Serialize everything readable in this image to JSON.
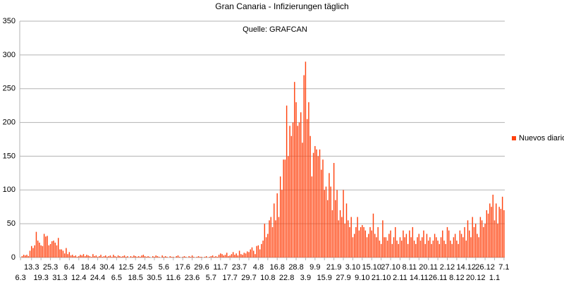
{
  "chart_data": {
    "type": "bar",
    "title": "Gran Canaria - Infizierungen täglich",
    "subtitle": "Quelle: GRAFCAN",
    "legend": "right",
    "grid": true,
    "ylim": [
      0,
      350
    ],
    "yticks": [
      0,
      50,
      100,
      150,
      200,
      250,
      300,
      350
    ],
    "categories": [
      "6.3",
      null,
      null,
      null,
      null,
      null,
      null,
      "13.3",
      null,
      null,
      null,
      null,
      null,
      "19.3",
      null,
      null,
      null,
      null,
      null,
      "25.3",
      null,
      null,
      null,
      null,
      null,
      "31.3",
      null,
      null,
      null,
      null,
      null,
      "6.4",
      null,
      null,
      null,
      null,
      null,
      "12.4",
      null,
      null,
      null,
      null,
      null,
      "18.4",
      null,
      null,
      null,
      null,
      null,
      "24.4",
      null,
      null,
      null,
      null,
      null,
      "30.4",
      null,
      null,
      null,
      null,
      null,
      "6.5",
      null,
      null,
      null,
      null,
      null,
      "12.5",
      null,
      null,
      null,
      null,
      null,
      "18.5",
      null,
      null,
      null,
      null,
      null,
      "24.5",
      null,
      null,
      null,
      null,
      null,
      "30.5",
      null,
      null,
      null,
      null,
      null,
      "5.6",
      null,
      null,
      null,
      null,
      null,
      "11.6",
      null,
      null,
      null,
      null,
      null,
      "17.6",
      null,
      null,
      null,
      null,
      null,
      "23.6",
      null,
      null,
      null,
      null,
      null,
      "29.6",
      null,
      null,
      null,
      null,
      null,
      "5.7",
      null,
      null,
      null,
      null,
      null,
      "11.7",
      null,
      null,
      null,
      null,
      null,
      "17.7",
      null,
      null,
      null,
      null,
      null,
      "23.7",
      null,
      null,
      null,
      null,
      null,
      "29.7",
      null,
      null,
      null,
      null,
      null,
      "4.8",
      null,
      null,
      null,
      null,
      null,
      "10.8",
      null,
      null,
      null,
      null,
      null,
      "16.8",
      null,
      null,
      null,
      null,
      null,
      "22.8",
      null,
      null,
      null,
      null,
      null,
      "28.8",
      null,
      null,
      null,
      null,
      null,
      "3.9",
      null,
      null,
      null,
      null,
      null,
      "9.9",
      null,
      null,
      null,
      null,
      null,
      "15.9",
      null,
      null,
      null,
      null,
      null,
      "21.9",
      null,
      null,
      null,
      null,
      null,
      "27.9",
      null,
      null,
      null,
      null,
      null,
      "3.10",
      null,
      null,
      null,
      null,
      null,
      "9.10",
      null,
      null,
      null,
      null,
      null,
      "15.10",
      null,
      null,
      null,
      null,
      null,
      "21.10",
      null,
      null,
      null,
      null,
      null,
      "27.10",
      null,
      null,
      null,
      null,
      null,
      "2.11",
      null,
      null,
      null,
      null,
      null,
      "8.11",
      null,
      null,
      null,
      null,
      null,
      "14.11",
      null,
      null,
      null,
      null,
      null,
      "20.11",
      null,
      null,
      null,
      null,
      null,
      "26.11",
      null,
      null,
      null,
      null,
      null,
      "2.12",
      null,
      null,
      null,
      null,
      null,
      "8.12",
      null,
      null,
      null,
      null,
      null,
      "14.12",
      null,
      null,
      null,
      null,
      null,
      "20.12",
      null,
      null,
      null,
      null,
      null,
      "26.12",
      null,
      null,
      null,
      null,
      null,
      "1.1",
      null,
      null,
      null,
      null,
      null,
      "7.1"
    ],
    "series": [
      {
        "name": "Nuevos diario",
        "color": "#ff420e",
        "values": [
          0,
          2,
          4,
          3,
          4,
          2,
          10,
          17,
          14,
          18,
          38,
          25,
          22,
          18,
          17,
          35,
          31,
          32,
          18,
          20,
          24,
          25,
          22,
          18,
          29,
          12,
          12,
          10,
          6,
          14,
          5,
          8,
          3,
          4,
          2,
          3,
          1,
          2,
          4,
          3,
          5,
          2,
          4,
          3,
          2,
          1,
          5,
          2,
          3,
          1,
          2,
          4,
          1,
          2,
          3,
          1,
          2,
          3,
          1,
          4,
          2,
          1,
          3,
          2,
          1,
          2,
          3,
          1,
          2,
          0,
          2,
          1,
          3,
          2,
          1,
          2,
          1,
          3,
          4,
          2,
          1,
          2,
          1,
          0,
          2,
          1,
          3,
          2,
          1,
          0,
          3,
          1,
          2,
          1,
          0,
          2,
          1,
          1,
          0,
          2,
          3,
          1,
          0,
          1,
          2,
          1,
          0,
          2,
          1,
          3,
          1,
          0,
          1,
          2,
          1,
          1,
          0,
          1,
          2,
          0,
          1,
          2,
          3,
          1,
          2,
          1,
          4,
          6,
          5,
          3,
          4,
          7,
          2,
          3,
          5,
          8,
          4,
          6,
          3,
          10,
          5,
          4,
          7,
          6,
          9,
          8,
          12,
          15,
          10,
          5,
          17,
          18,
          12,
          20,
          25,
          50,
          30,
          35,
          55,
          60,
          45,
          80,
          55,
          95,
          60,
          120,
          100,
          145,
          145,
          225,
          150,
          195,
          180,
          200,
          260,
          230,
          195,
          200,
          215,
          170,
          270,
          290,
          205,
          230,
          180,
          120,
          155,
          165,
          160,
          150,
          160,
          130,
          145,
          100,
          105,
          85,
          125,
          105,
          70,
          140,
          85,
          100,
          55,
          70,
          60,
          100,
          50,
          80,
          55,
          45,
          60,
          30,
          35,
          45,
          60,
          40,
          45,
          48,
          45,
          40,
          30,
          35,
          45,
          40,
          65,
          35,
          30,
          45,
          25,
          20,
          55,
          30,
          30,
          25,
          35,
          40,
          20,
          30,
          45,
          25,
          20,
          30,
          25,
          40,
          30,
          35,
          20,
          40,
          30,
          45,
          25,
          20,
          30,
          35,
          25,
          30,
          40,
          20,
          35,
          25,
          30,
          20,
          25,
          35,
          30,
          25,
          20,
          30,
          40,
          25,
          20,
          45,
          40,
          25,
          20,
          30,
          35,
          25,
          20,
          40,
          35,
          30,
          45,
          25,
          55,
          40,
          30,
          60,
          45,
          50,
          35,
          30,
          60,
          55,
          45,
          50,
          70,
          65,
          80,
          75,
          93,
          55,
          80,
          50,
          75,
          72,
          90,
          70
        ]
      }
    ]
  }
}
